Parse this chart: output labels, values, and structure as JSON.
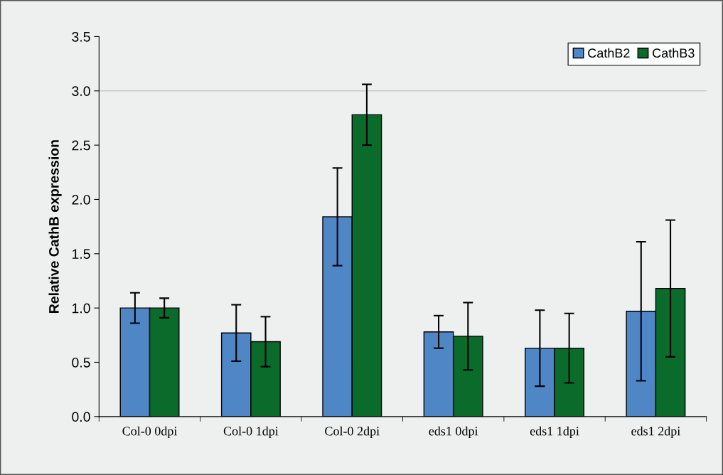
{
  "chart_data": {
    "type": "bar",
    "ylabel": "Relative CathB expression",
    "categories": [
      "Col-0 0dpi",
      "Col-0 1dpi",
      "Col-0 2dpi",
      "eds1 0dpi",
      "eds1 1dpi",
      "eds1 2dpi"
    ],
    "series": [
      {
        "name": "CathB2",
        "color": "#4f86c6",
        "values": [
          1.0,
          0.77,
          1.84,
          0.78,
          0.63,
          0.97
        ],
        "errors": [
          0.14,
          0.26,
          0.45,
          0.15,
          0.35,
          0.64
        ]
      },
      {
        "name": "CathB3",
        "color": "#0a6b2a",
        "values": [
          1.0,
          0.69,
          2.78,
          0.74,
          0.63,
          1.18
        ],
        "errors": [
          0.09,
          0.23,
          0.28,
          0.31,
          0.32,
          0.63
        ]
      }
    ],
    "ylim": [
      0,
      3.5
    ],
    "yticks": [
      {
        "value": 0,
        "label": "0.0"
      },
      0.5,
      {
        "value": 1,
        "label": "1.0"
      },
      1.5,
      {
        "value": 2,
        "label": "2.0"
      },
      2.5,
      {
        "value": 3,
        "label": "3.0"
      },
      3.5
    ],
    "ref_lines": [
      {
        "axis": "y",
        "value": 3.0,
        "color": "#c8c8c8"
      }
    ],
    "grid": false,
    "legend": "top right"
  }
}
